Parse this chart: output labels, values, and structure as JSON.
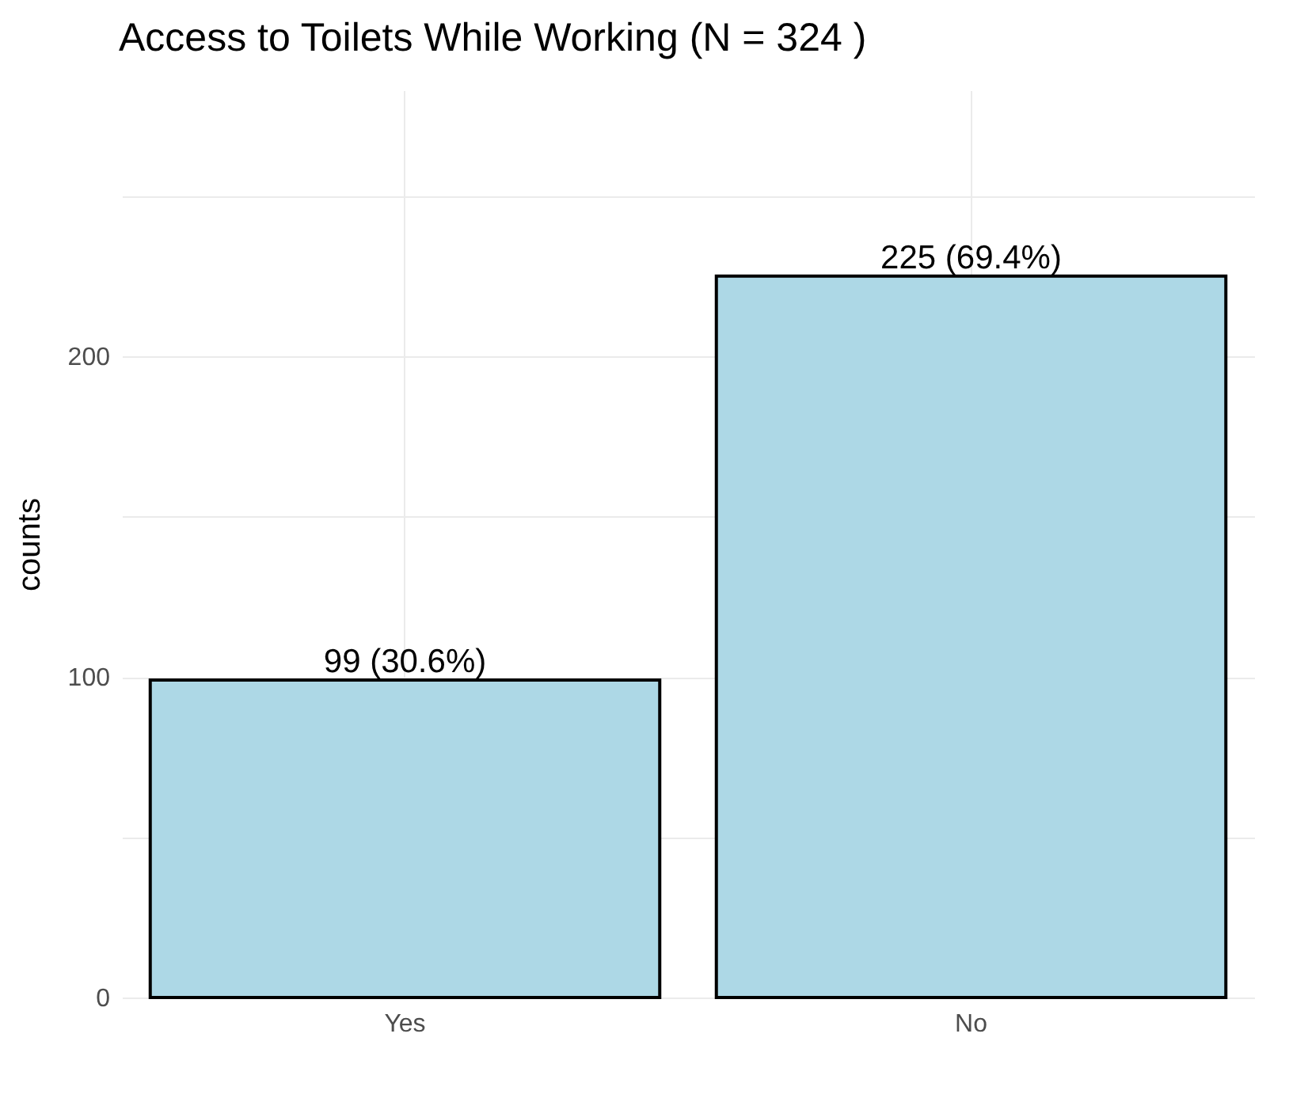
{
  "chart_data": {
    "type": "bar",
    "title": "Access to Toilets While Working (N = 324 )",
    "ylabel": "counts",
    "categories": [
      "Yes",
      "No"
    ],
    "values": [
      99,
      225
    ],
    "value_labels": [
      "99 (30.6%)",
      "225 (69.4%)"
    ],
    "color": "#add8e6",
    "ylim": [
      0,
      283
    ],
    "yticks": [
      0,
      {
        "value": 50,
        "label": null
      },
      100,
      {
        "value": 150,
        "label": null
      },
      200,
      {
        "value": 250,
        "label": null
      }
    ],
    "grid": true
  }
}
